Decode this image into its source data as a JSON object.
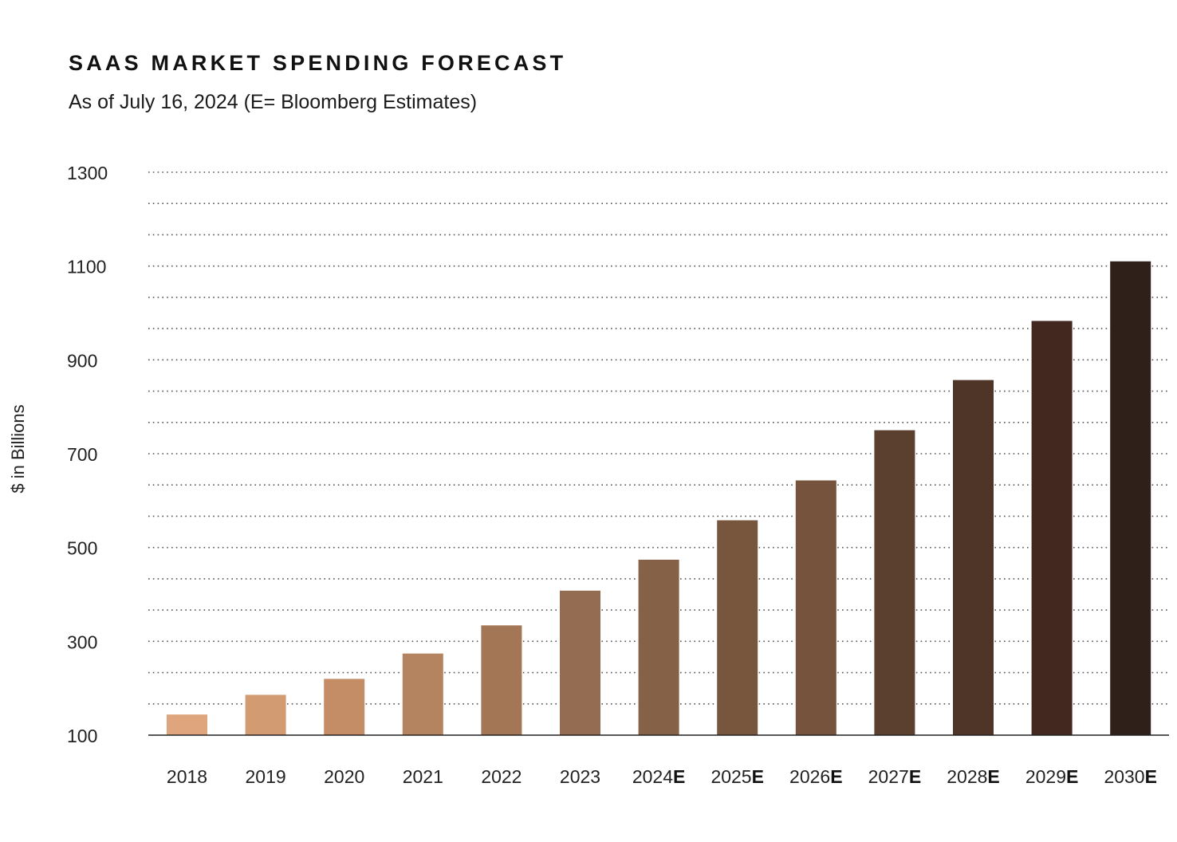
{
  "chart_data": {
    "type": "bar",
    "title": "SAAS MARKET SPENDING FORECAST",
    "subtitle": "As of July 16, 2024 (E= Bloomberg Estimates)",
    "xlabel": "",
    "ylabel": "$ in Billions",
    "ylim": [
      100,
      1300
    ],
    "yticks": [
      100,
      300,
      500,
      700,
      900,
      1100,
      1300
    ],
    "grid_step": 66.7,
    "grid": true,
    "categories": [
      {
        "year": "2018",
        "suffix": ""
      },
      {
        "year": "2019",
        "suffix": ""
      },
      {
        "year": "2020",
        "suffix": ""
      },
      {
        "year": "2021",
        "suffix": ""
      },
      {
        "year": "2022",
        "suffix": ""
      },
      {
        "year": "2023",
        "suffix": ""
      },
      {
        "year": "2024",
        "suffix": "E"
      },
      {
        "year": "2025",
        "suffix": "E"
      },
      {
        "year": "2026",
        "suffix": "E"
      },
      {
        "year": "2027",
        "suffix": "E"
      },
      {
        "year": "2028",
        "suffix": "E"
      },
      {
        "year": "2029",
        "suffix": "E"
      },
      {
        "year": "2030",
        "suffix": "E"
      }
    ],
    "values": [
      144,
      186,
      220,
      274,
      334,
      408,
      474,
      558,
      643,
      750,
      857,
      983,
      1110
    ],
    "colors": [
      "#dfa57c",
      "#d39b71",
      "#c48d66",
      "#b4835f",
      "#a37656",
      "#936c51",
      "#856148",
      "#78563d",
      "#75533c",
      "#5b4030",
      "#4f3527",
      "#43281f",
      "#30201a"
    ]
  }
}
